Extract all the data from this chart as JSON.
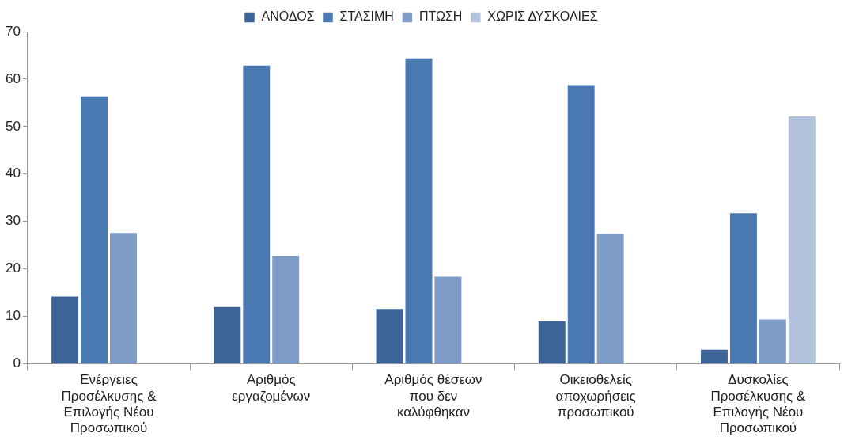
{
  "chart_data": {
    "type": "bar",
    "categories": [
      "Ενέργειες Προσέλκυσης & Επιλογής Νέου Προσωπικού",
      "Αριθμός εργαζομένων",
      "Αριθμός θέσεων που δεν καλύφθηκαν",
      "Οικειοθελείς αποχωρήσεις προσωπικού",
      "Δυσκολίες Προσέλκυσης & Επιλογής Νέου Προσωπικού"
    ],
    "series": [
      {
        "name": "ΑΝΟΔΟΣ",
        "color": "#3c6496",
        "values": [
          14.4,
          12.2,
          11.8,
          9.2,
          3.2
        ]
      },
      {
        "name": "ΣΤΑΣΙΜΗ",
        "color": "#4a78b0",
        "values": [
          56.6,
          63.1,
          64.6,
          59,
          32
        ]
      },
      {
        "name": "ΠΤΩΣΗ",
        "color": "#7f9bc8",
        "values": [
          27.8,
          23,
          18.6,
          27.6,
          9.6
        ]
      },
      {
        "name": "ΧΩΡΙΣ ΔΥΣΚΟΛΙΕΣ",
        "color": "#b3c3de",
        "values": [
          null,
          null,
          null,
          null,
          52.4
        ]
      }
    ],
    "ylim": [
      0,
      70
    ],
    "yticks": [
      0,
      10,
      20,
      30,
      40,
      50,
      60,
      70
    ],
    "grid": false,
    "legend": "top"
  }
}
